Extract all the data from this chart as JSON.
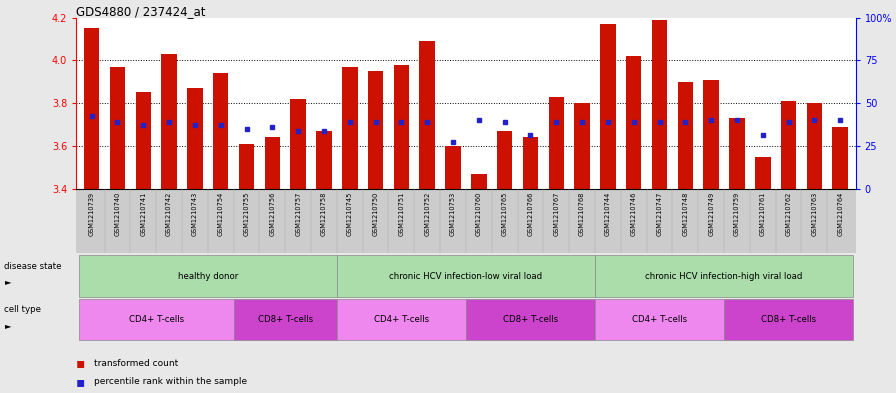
{
  "title": "GDS4880 / 237424_at",
  "samples": [
    "GSM1210739",
    "GSM1210740",
    "GSM1210741",
    "GSM1210742",
    "GSM1210743",
    "GSM1210754",
    "GSM1210755",
    "GSM1210756",
    "GSM1210757",
    "GSM1210758",
    "GSM1210745",
    "GSM1210750",
    "GSM1210751",
    "GSM1210752",
    "GSM1210753",
    "GSM1210760",
    "GSM1210765",
    "GSM1210766",
    "GSM1210767",
    "GSM1210768",
    "GSM1210744",
    "GSM1210746",
    "GSM1210747",
    "GSM1210748",
    "GSM1210749",
    "GSM1210759",
    "GSM1210761",
    "GSM1210762",
    "GSM1210763",
    "GSM1210764"
  ],
  "bar_values": [
    4.15,
    3.97,
    3.85,
    4.03,
    3.87,
    3.94,
    3.61,
    3.64,
    3.82,
    3.67,
    3.97,
    3.95,
    3.98,
    4.09,
    3.6,
    3.47,
    3.67,
    3.64,
    3.83,
    3.8,
    4.17,
    4.02,
    4.19,
    3.9,
    3.91,
    3.73,
    3.55,
    3.81,
    3.8,
    3.69
  ],
  "blue_dot_values": [
    3.74,
    3.71,
    3.7,
    3.71,
    3.7,
    3.7,
    3.68,
    3.69,
    3.67,
    3.67,
    3.71,
    3.71,
    3.71,
    3.71,
    3.62,
    3.72,
    3.71,
    3.65,
    3.71,
    3.71,
    3.71,
    3.71,
    3.71,
    3.71,
    3.72,
    3.72,
    3.65,
    3.71,
    3.72,
    3.72
  ],
  "ylim_left": [
    3.4,
    4.2
  ],
  "ylim_right": [
    0,
    100
  ],
  "bar_color": "#CC1100",
  "dot_color": "#2222CC",
  "base_value": 3.4,
  "bg_color": "#E8E8E8",
  "plot_bg": "#FFFFFF",
  "yticks_left": [
    3.4,
    3.6,
    3.8,
    4.0,
    4.2
  ],
  "yticks_right": [
    0,
    25,
    50,
    75,
    100
  ],
  "ds_groups": [
    {
      "label": "healthy donor",
      "start": 0,
      "end": 10,
      "color": "#AADDAA"
    },
    {
      "label": "chronic HCV infection-low viral load",
      "start": 10,
      "end": 20,
      "color": "#AADDAA"
    },
    {
      "label": "chronic HCV infection-high viral load",
      "start": 20,
      "end": 30,
      "color": "#AADDAA"
    }
  ],
  "ct_groups": [
    {
      "label": "CD4+ T-cells",
      "start": 0,
      "end": 6,
      "color": "#EE88EE"
    },
    {
      "label": "CD8+ T-cells",
      "start": 6,
      "end": 10,
      "color": "#CC44CC"
    },
    {
      "label": "CD4+ T-cells",
      "start": 10,
      "end": 15,
      "color": "#EE88EE"
    },
    {
      "label": "CD8+ T-cells",
      "start": 15,
      "end": 20,
      "color": "#CC44CC"
    },
    {
      "label": "CD4+ T-cells",
      "start": 20,
      "end": 25,
      "color": "#EE88EE"
    },
    {
      "label": "CD8+ T-cells",
      "start": 25,
      "end": 30,
      "color": "#CC44CC"
    }
  ]
}
